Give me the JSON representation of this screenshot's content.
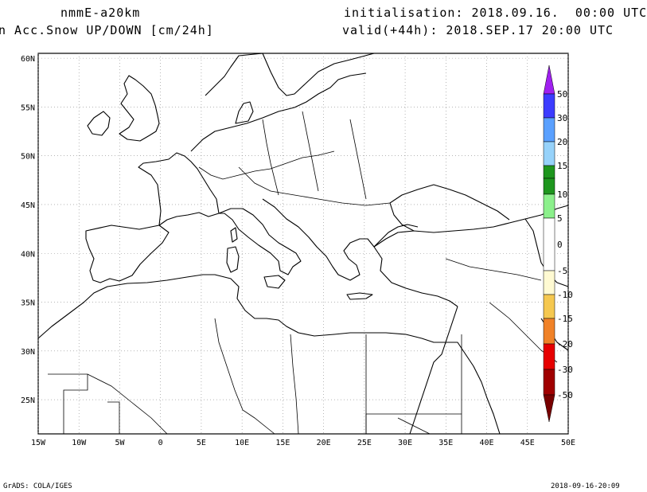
{
  "header": {
    "model": "nmmE-a20km",
    "variable": "n Acc.Snow UP/DOWN [cm/24h]",
    "initialisation": "initialisation: 2018.09.16.  00:00 UTC",
    "valid": "valid(+44h): 2018.SEP.17 20:00 UTC"
  },
  "map": {
    "lat_labels": [
      "60N",
      "55N",
      "50N",
      "45N",
      "40N",
      "35N",
      "30N",
      "25N"
    ],
    "lon_labels": [
      "15W",
      "10W",
      "5W",
      "0",
      "5E",
      "10E",
      "15E",
      "20E",
      "25E",
      "30E",
      "35E",
      "40E",
      "45E",
      "50E"
    ],
    "lon_range": [
      -15,
      50
    ],
    "lat_range": [
      21.5,
      60.5
    ],
    "grid": true,
    "grid_style": "dotted",
    "coastline_color": "#000000"
  },
  "colorbar": {
    "labels": [
      "50",
      "30",
      "20",
      "15",
      "10",
      "5",
      "0",
      "-5",
      "-10",
      "-15",
      "-20",
      "-30",
      "-50"
    ],
    "colors": {
      "purple": "#a020f0",
      "blue": "#3c3cff",
      "mid_blue": "#5aa0ff",
      "light_blue": "#96d2fa",
      "dark_green": "#1e961e",
      "green": "#50c850",
      "light_green": "#8cf08c",
      "white": "#ffffff",
      "light_yellow": "#fffad2",
      "yellow": "#f5c850",
      "orange": "#f08228",
      "red": "#e60000",
      "dark_red": "#a00000",
      "maroon": "#780000"
    }
  },
  "footer": {
    "left": "GrADS: COLA/IGES",
    "right": "2018-09-16-20:09"
  }
}
